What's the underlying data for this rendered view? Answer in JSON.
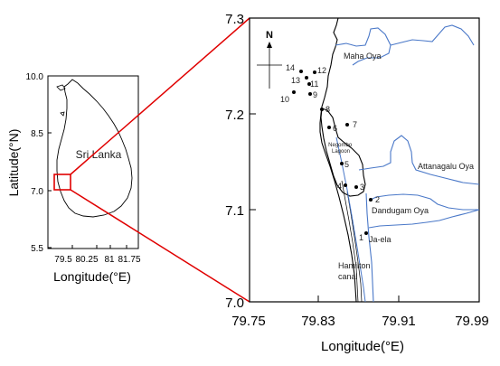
{
  "inset_map": {
    "y_ticks": [
      "10.0",
      "8.5",
      "7.0",
      "5.5"
    ],
    "x_ticks": [
      "79.5",
      "80.25",
      "81",
      "81.75"
    ],
    "y_axis_label": "Latitude(°N)",
    "x_axis_label": "Longitude(°E)",
    "country_label": "Sri Lanka"
  },
  "main_map": {
    "y_ticks": [
      "7.3",
      "7.2",
      "7.1",
      "7.0"
    ],
    "x_ticks": [
      "79.75",
      "79.83",
      "79.91",
      "79.99"
    ],
    "x_axis_label": "Longitude(°E)",
    "north_label": "N",
    "water_labels": {
      "maha_oya": "Maha Oya",
      "negombo_lagoon": "Negombo\nLagoon",
      "attanagalu_oya": "Attanagalu Oya",
      "dandugam_oya": "Dandugam Oya",
      "ja_ela": "Ja-ela",
      "hamilton_canal": "Hamilton\ncanal"
    },
    "stations": [
      "1",
      "2",
      "3",
      "4",
      "5",
      "6",
      "7",
      "8",
      "9",
      "10",
      "11",
      "12",
      "13",
      "14"
    ]
  },
  "colors": {
    "zoom_lines": "#e00000",
    "rivers": "#4a78c8",
    "coast": "#000000"
  }
}
